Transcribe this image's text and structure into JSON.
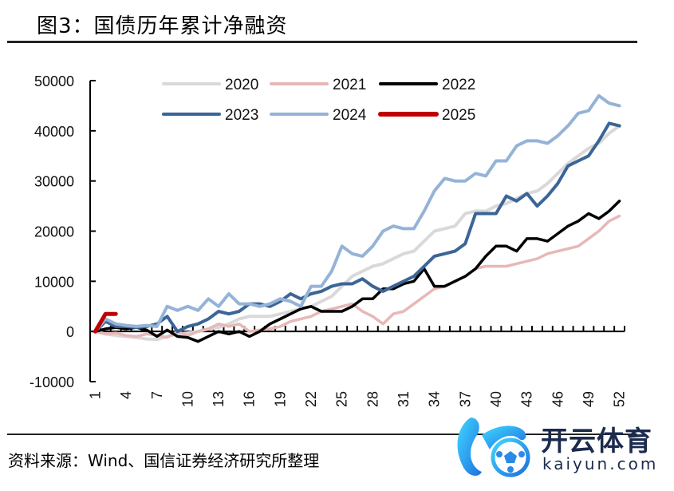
{
  "title": "图3：国债历年累计净融资",
  "source": "资料来源：Wind、国信证券经济研究所整理",
  "watermark": {
    "cn": "开云体育",
    "en": "kaiyun.com",
    "icon": "soccer-ball-logo-icon"
  },
  "chart_data": {
    "type": "line",
    "title": "国债历年累计净融资",
    "xlabel": "",
    "ylabel": "",
    "x": [
      1,
      2,
      3,
      4,
      5,
      6,
      7,
      8,
      9,
      10,
      11,
      12,
      13,
      14,
      15,
      16,
      17,
      18,
      19,
      20,
      21,
      22,
      23,
      24,
      25,
      26,
      27,
      28,
      29,
      30,
      31,
      32,
      33,
      34,
      35,
      36,
      37,
      38,
      39,
      40,
      41,
      42,
      43,
      44,
      45,
      46,
      47,
      48,
      49,
      50,
      51,
      52
    ],
    "xtick_labels": [
      "1",
      "4",
      "7",
      "10",
      "13",
      "16",
      "19",
      "22",
      "25",
      "28",
      "31",
      "34",
      "37",
      "40",
      "43",
      "46",
      "49",
      "52"
    ],
    "ylim": [
      -10000,
      50000
    ],
    "yticks": [
      -10000,
      0,
      10000,
      20000,
      30000,
      40000,
      50000
    ],
    "ytick_labels": [
      "-10000",
      "0",
      "10000",
      "20000",
      "30000",
      "40000",
      "50000"
    ],
    "grid": false,
    "legend_position": "top-center",
    "series": [
      {
        "name": "2020",
        "color": "#d9d9d9",
        "values": [
          0,
          -500,
          -800,
          -1000,
          -1200,
          -1500,
          -1600,
          -1000,
          -500,
          -300,
          0,
          500,
          800,
          1500,
          2500,
          3000,
          3000,
          3000,
          3500,
          4000,
          4500,
          5000,
          6000,
          7000,
          9000,
          11000,
          12000,
          13000,
          13500,
          14500,
          15500,
          16000,
          18000,
          20000,
          20500,
          21000,
          23500,
          24000,
          24000,
          25000,
          25500,
          26500,
          27500,
          28000,
          29500,
          31500,
          33500,
          35000,
          36500,
          37500,
          39500,
          41000
        ]
      },
      {
        "name": "2021",
        "color": "#e6b8b7",
        "values": [
          0,
          -500,
          -300,
          -800,
          -1000,
          -500,
          -800,
          -1200,
          0,
          -800,
          0,
          500,
          1500,
          1000,
          1500,
          0,
          300,
          500,
          1000,
          2000,
          2500,
          3000,
          4000,
          4500,
          5000,
          5500,
          4000,
          3000,
          1500,
          3500,
          4000,
          5500,
          7000,
          8500,
          9000,
          10000,
          11000,
          12500,
          13000,
          13000,
          13000,
          13500,
          14000,
          14500,
          15500,
          16000,
          16500,
          17000,
          18500,
          20000,
          22000,
          23000
        ]
      },
      {
        "name": "2022",
        "color": "#000000",
        "values": [
          0,
          500,
          800,
          500,
          800,
          300,
          -1000,
          300,
          -1000,
          -1200,
          -2000,
          -1000,
          0,
          -500,
          0,
          -1000,
          0,
          1500,
          2500,
          3500,
          4500,
          5000,
          4000,
          4000,
          4000,
          5000,
          6500,
          6500,
          8500,
          8500,
          9500,
          10000,
          12500,
          9000,
          9000,
          10000,
          11000,
          12500,
          15000,
          17000,
          17000,
          16000,
          18500,
          18500,
          18000,
          19500,
          21000,
          22000,
          23500,
          22500,
          24000,
          26000
        ]
      },
      {
        "name": "2023",
        "color": "#3c6597",
        "values": [
          0,
          2000,
          1000,
          1000,
          800,
          1000,
          1500,
          3000,
          0,
          1000,
          1500,
          2500,
          4000,
          3500,
          4000,
          5500,
          5500,
          5000,
          6000,
          7500,
          6500,
          7500,
          8000,
          9000,
          9500,
          9500,
          10500,
          9000,
          8000,
          9000,
          10000,
          11000,
          13000,
          15000,
          15500,
          16000,
          17500,
          23500,
          23500,
          23500,
          27000,
          26000,
          27500,
          25000,
          27000,
          29500,
          33000,
          34000,
          35000,
          38000,
          41500,
          41000
        ]
      },
      {
        "name": "2024",
        "color": "#95b3d7",
        "values": [
          0,
          2500,
          1500,
          1200,
          1000,
          1200,
          1000,
          5000,
          4200,
          5000,
          4200,
          6500,
          5000,
          7500,
          5500,
          5500,
          5000,
          5500,
          6500,
          6000,
          5000,
          9000,
          9000,
          12000,
          17000,
          15500,
          15000,
          17000,
          20000,
          21000,
          20500,
          20500,
          24000,
          28000,
          30500,
          30000,
          30000,
          31500,
          31000,
          34000,
          34000,
          37000,
          38000,
          38000,
          37500,
          39000,
          41000,
          43500,
          44000,
          47000,
          45500,
          45000
        ]
      },
      {
        "name": "2025",
        "color": "#c00000",
        "values": [
          0,
          3500,
          3500
        ]
      }
    ]
  }
}
